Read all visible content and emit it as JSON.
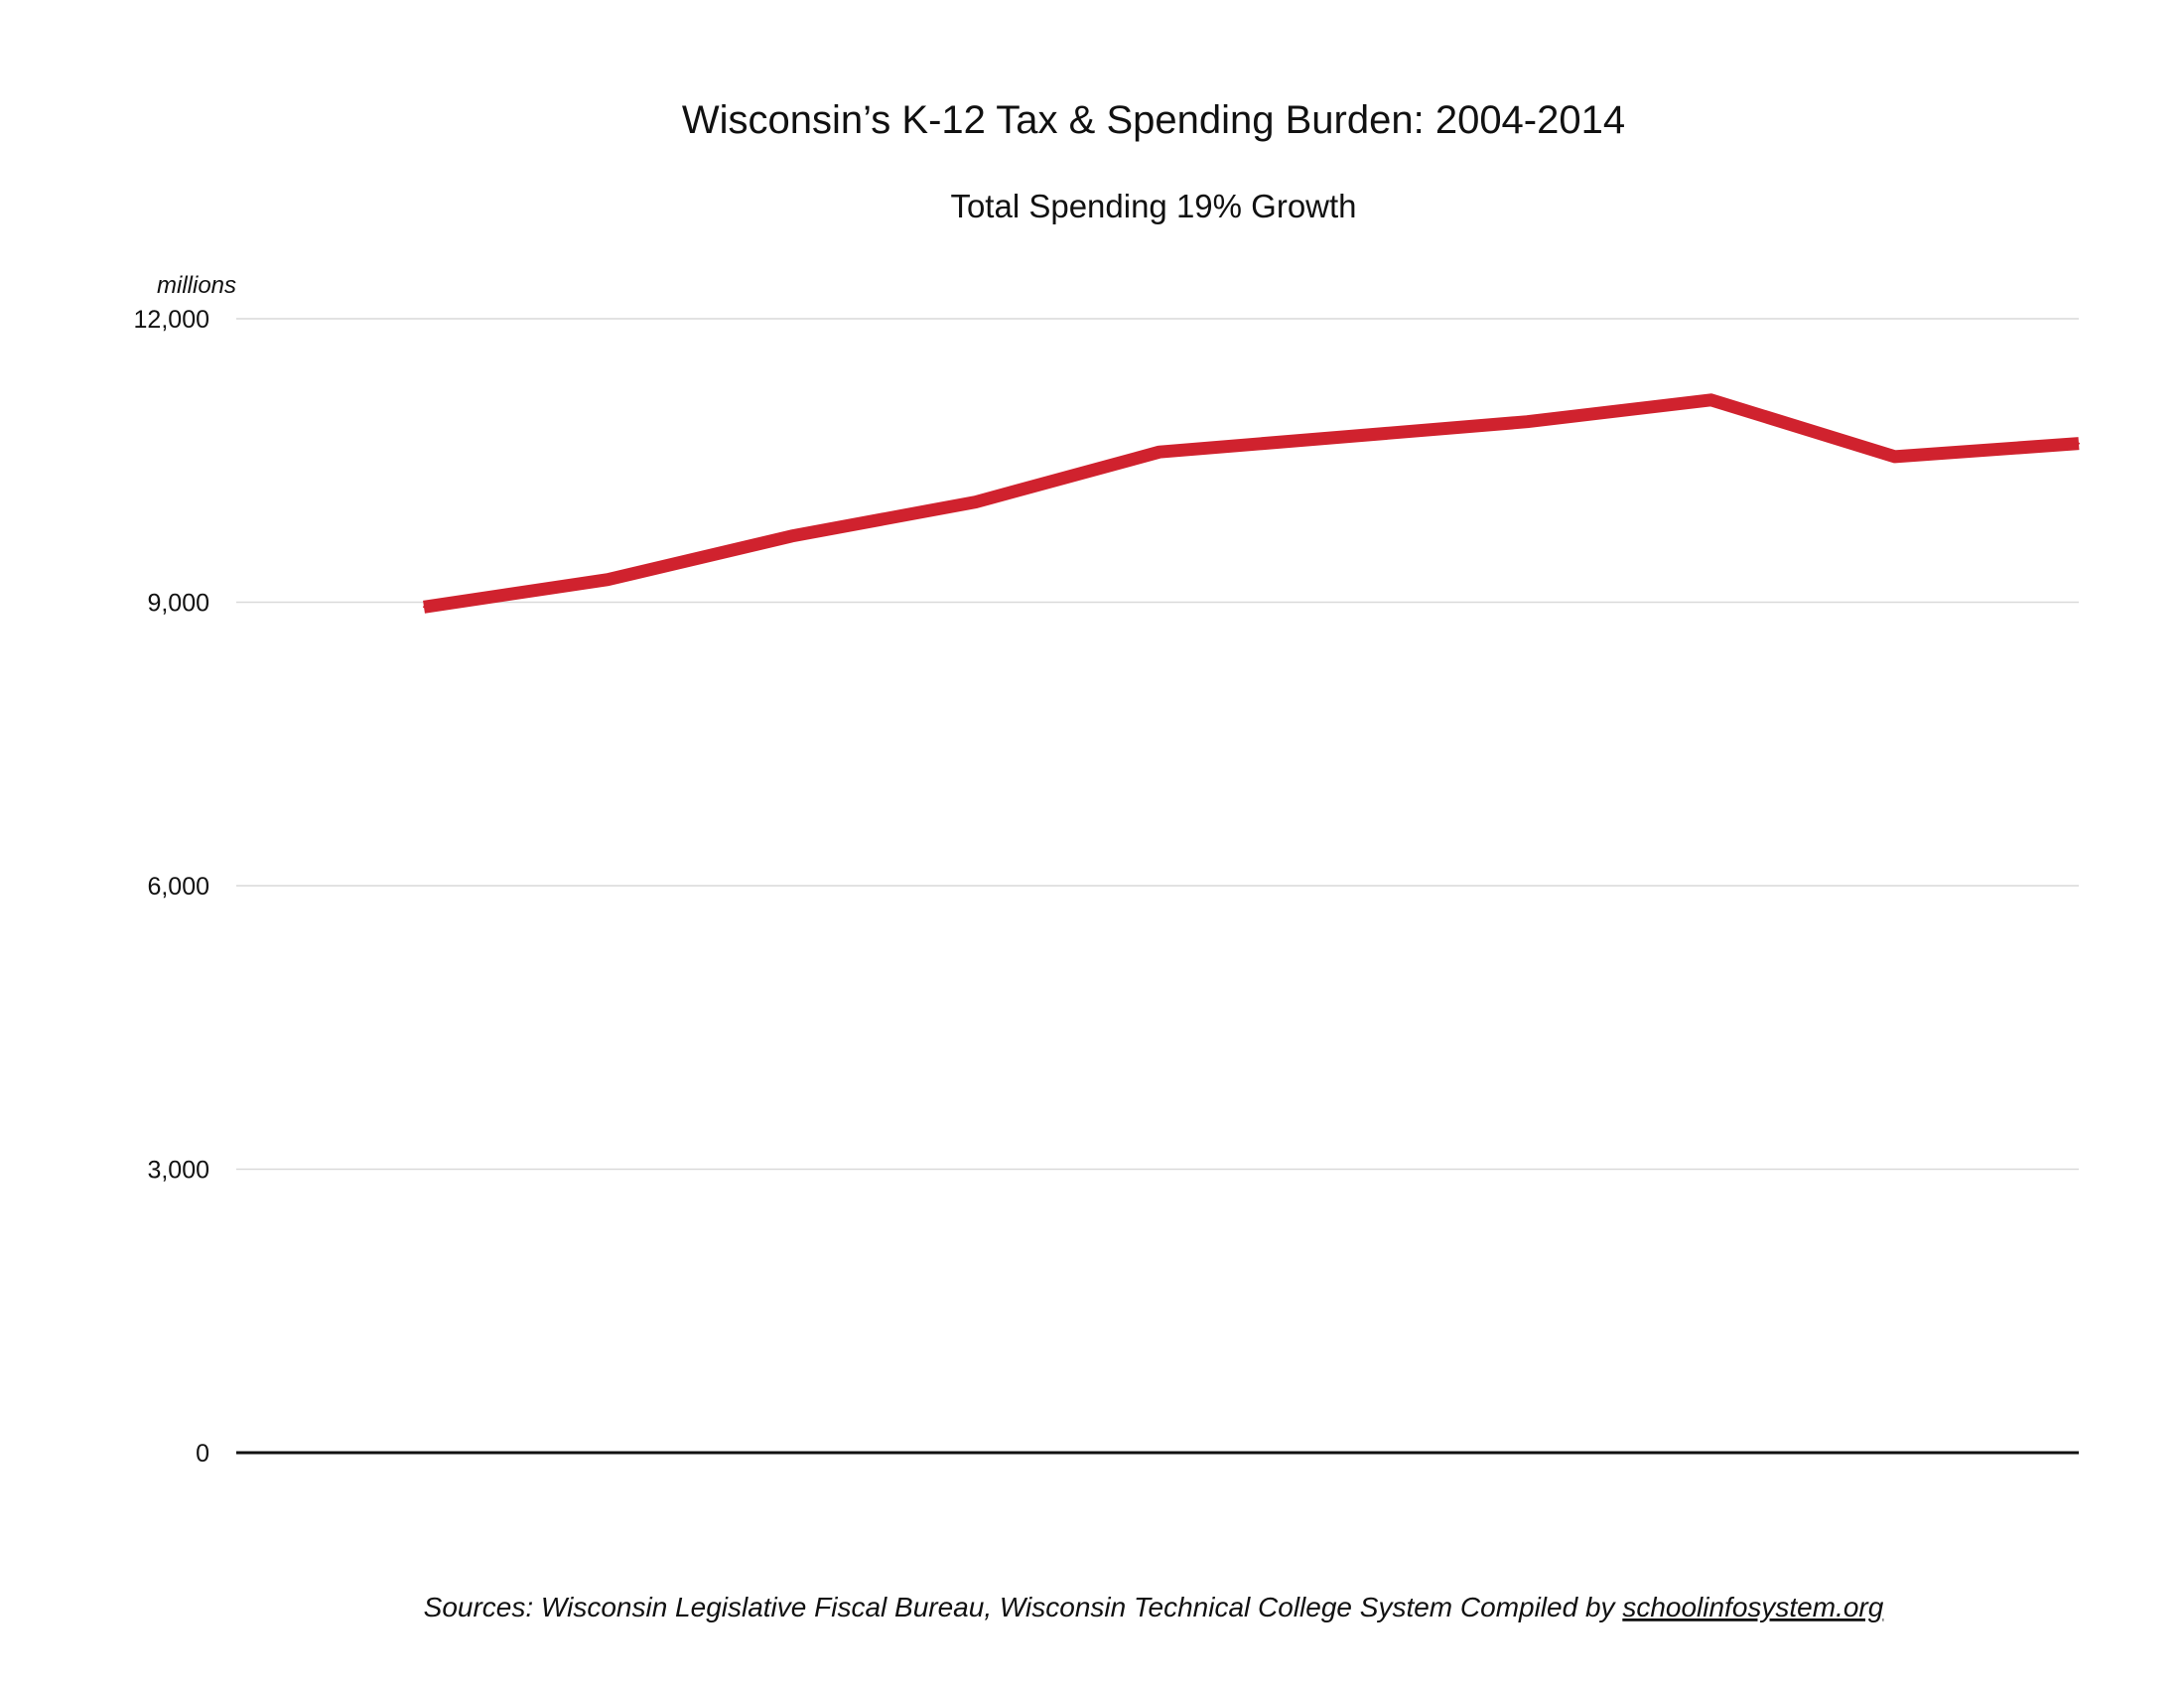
{
  "chart_data": {
    "type": "line",
    "title": "Wisconsin’s K-12 Tax & Spending Burden: 2004-2014",
    "subtitle": "Total Spending 19% Growth",
    "xlabel": "",
    "ylabel": "",
    "y_unit": "millions",
    "ylim": [
      0,
      12000
    ],
    "yticks": [
      0,
      3000,
      6000,
      9000,
      12000
    ],
    "ytick_labels": [
      "0",
      "3,000",
      "6,000",
      "9,000",
      "12,000"
    ],
    "grid": true,
    "series": [
      {
        "values": [
          8950,
          9240,
          9700,
          10060,
          10590,
          10750,
          10910,
          11140,
          10540,
          10680
        ]
      }
    ],
    "colors": {
      "line": "#d0222e",
      "grid": "#d9d9d9",
      "baseline": "#111111"
    }
  },
  "footer": {
    "sources": "Sources: Wisconsin Legislative Fiscal Bureau, Wisconsin Technical College System  Compiled by ",
    "link": "schoolinfosystem.org"
  }
}
